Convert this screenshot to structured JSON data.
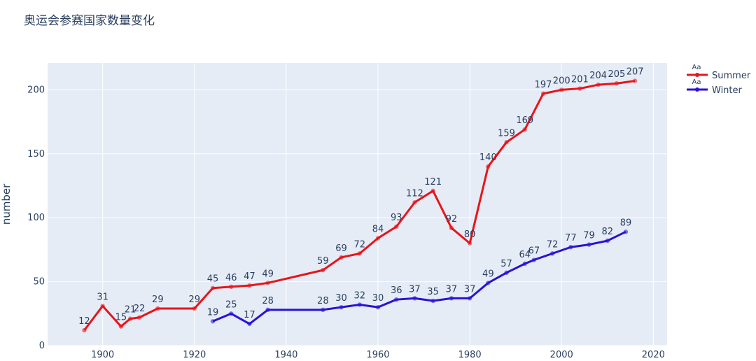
{
  "chart_data": {
    "type": "line",
    "title": "奥运会参赛国家数量变化",
    "xlabel": "",
    "ylabel": "number",
    "xlim": [
      1888,
      2023
    ],
    "ylim": [
      0,
      221
    ],
    "xticks": [
      1900,
      1920,
      1940,
      1960,
      1980,
      2000,
      2020
    ],
    "yticks": [
      0,
      50,
      100,
      150,
      200
    ],
    "grid": true,
    "legend_position": "top-right",
    "legend_marker_text": "Aa",
    "series": [
      {
        "name": "Summer",
        "color": "#e8141b",
        "x": [
          1896,
          1900,
          1904,
          1906,
          1908,
          1912,
          1920,
          1924,
          1928,
          1932,
          1936,
          1948,
          1952,
          1956,
          1960,
          1964,
          1968,
          1972,
          1976,
          1980,
          1984,
          1988,
          1992,
          1996,
          2000,
          2004,
          2008,
          2012,
          2016
        ],
        "values": [
          12,
          31,
          15,
          21,
          22,
          29,
          29,
          45,
          46,
          47,
          49,
          59,
          69,
          72,
          84,
          93,
          112,
          121,
          92,
          80,
          140,
          159,
          169,
          197,
          200,
          201,
          204,
          205,
          207
        ]
      },
      {
        "name": "Winter",
        "color": "#2a12d6",
        "x": [
          1924,
          1928,
          1932,
          1936,
          1948,
          1952,
          1956,
          1960,
          1964,
          1968,
          1972,
          1976,
          1980,
          1984,
          1988,
          1992,
          1994,
          1998,
          2002,
          2006,
          2010,
          2014
        ],
        "values": [
          19,
          25,
          17,
          28,
          28,
          30,
          32,
          30,
          36,
          37,
          35,
          37,
          37,
          49,
          57,
          64,
          67,
          72,
          77,
          79,
          82,
          89
        ],
        "labeled_x": [
          1924,
          1928,
          1932,
          1936,
          1948,
          1952,
          1956,
          1960,
          1964,
          1968,
          1972,
          1976,
          1980,
          1984,
          1988,
          1992,
          1994,
          1998,
          2002,
          2006,
          2010,
          2014
        ]
      }
    ],
    "summer_labeled_x": [
      1896,
      1900,
      1904,
      1906,
      1908,
      1912,
      1920,
      1924,
      1928,
      1932,
      1936,
      1948,
      1952,
      1956,
      1960,
      1964,
      1968,
      1972,
      1976,
      1980,
      1984,
      1988,
      1992,
      1996,
      2000,
      2004,
      2008,
      2012,
      2016
    ]
  }
}
